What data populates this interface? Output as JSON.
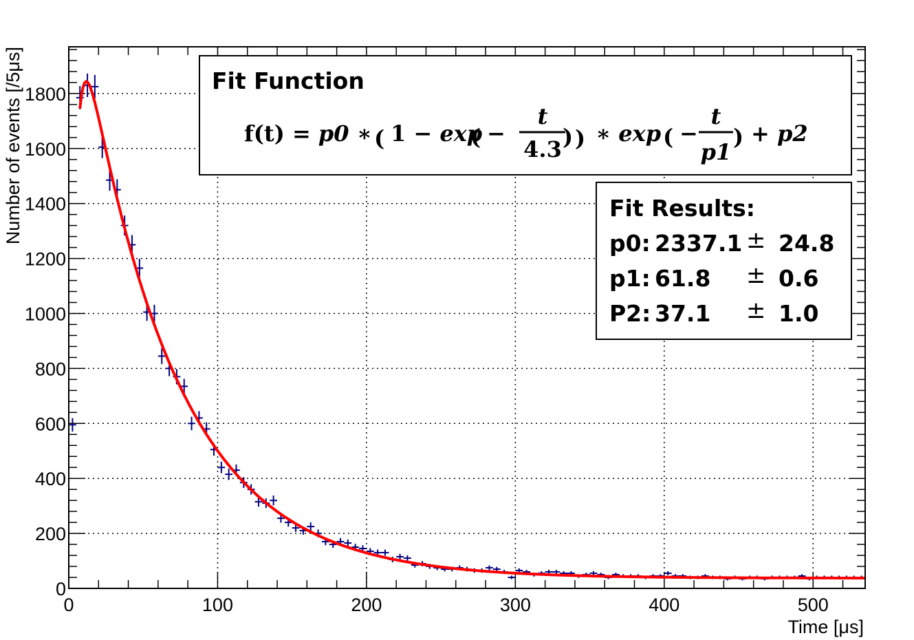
{
  "chart_data": {
    "type": "scatter",
    "xlabel": "Time [μs]",
    "ylabel": "Number of events [/5μs]",
    "xlim": [
      0,
      535
    ],
    "ylim": [
      0,
      1970
    ],
    "x_ticks": [
      0,
      100,
      200,
      300,
      400,
      500
    ],
    "y_ticks": [
      0,
      200,
      400,
      600,
      800,
      1000,
      1200,
      1400,
      1600,
      1800
    ],
    "grid": true,
    "bin_width": 5,
    "series": [
      {
        "kind": "data-points-with-error-bars",
        "color": "#000080",
        "x": [
          2.5,
          7.5,
          12.5,
          17.5,
          22.5,
          27.5,
          32.5,
          37.5,
          42.5,
          47.5,
          52.5,
          57.5,
          62.5,
          67.5,
          72.5,
          77.5,
          82.5,
          87.5,
          92.5,
          97.5,
          102.5,
          107.5,
          112.5,
          117.5,
          122.5,
          127.5,
          132.5,
          137.5,
          142.5,
          147.5,
          152.5,
          157.5,
          162.5,
          167.5,
          172.5,
          177.5,
          182.5,
          187.5,
          192.5,
          197.5,
          202.5,
          207.5,
          212.5,
          217.5,
          222.5,
          227.5,
          232.5,
          237.5,
          242.5,
          247.5,
          252.5,
          257.5,
          262.5,
          267.5,
          272.5,
          277.5,
          282.5,
          287.5,
          292.5,
          297.5,
          302.5,
          307.5,
          312.5,
          317.5,
          322.5,
          327.5,
          332.5,
          337.5,
          342.5,
          347.5,
          352.5,
          357.5,
          362.5,
          367.5,
          372.5,
          377.5,
          382.5,
          387.5,
          392.5,
          397.5,
          402.5,
          407.5,
          412.5,
          417.5,
          422.5,
          427.5,
          432.5,
          437.5,
          442.5,
          447.5,
          452.5,
          457.5,
          462.5,
          467.5,
          472.5,
          477.5,
          482.5,
          487.5,
          492.5,
          497.5,
          502.5,
          507.5,
          512.5,
          517.5,
          522.5,
          527.5,
          532.5
        ],
        "y": [
          595,
          1785,
          1830,
          1825,
          1605,
          1485,
          1450,
          1320,
          1250,
          1165,
          1005,
          1000,
          845,
          800,
          770,
          735,
          600,
          620,
          580,
          505,
          440,
          415,
          430,
          385,
          360,
          315,
          310,
          320,
          255,
          240,
          220,
          210,
          225,
          200,
          170,
          160,
          170,
          165,
          150,
          145,
          135,
          130,
          130,
          105,
          115,
          110,
          85,
          90,
          80,
          75,
          70,
          70,
          75,
          70,
          65,
          65,
          75,
          70,
          60,
          40,
          65,
          60,
          50,
          55,
          60,
          60,
          55,
          55,
          45,
          50,
          55,
          50,
          40,
          50,
          45,
          45,
          45,
          40,
          45,
          45,
          55,
          45,
          45,
          40,
          40,
          45,
          40,
          40,
          35,
          40,
          35,
          40,
          40,
          35,
          40,
          40,
          40,
          40,
          45,
          35,
          40,
          40,
          40,
          40,
          40,
          40,
          40
        ]
      },
      {
        "kind": "fit-curve",
        "color": "#ff0000",
        "p0": 2337.1,
        "p1": 61.8,
        "p2": 37.1,
        "rise": 4.3,
        "x_start": 7.5
      }
    ]
  },
  "fit_function": {
    "title": "Fit Function",
    "lhs": "f(t)",
    "equals": "=",
    "p0": "p0",
    "times": "∗",
    "one": "1",
    "minus": "−",
    "exp": "exp",
    "t": "t",
    "rise_const": "4.3",
    "p1": "p1",
    "plus": "+",
    "p2": "p2"
  },
  "fit_results": {
    "title": "Fit Results:",
    "rows": [
      {
        "label": "p0:",
        "value": "2337.1",
        "pm": "±",
        "error": "24.8"
      },
      {
        "label": "p1:",
        "value": "61.8",
        "pm": "±",
        "error": "0.6"
      },
      {
        "label": "P2:",
        "value": "37.1",
        "pm": "±",
        "error": "1.0"
      }
    ]
  }
}
